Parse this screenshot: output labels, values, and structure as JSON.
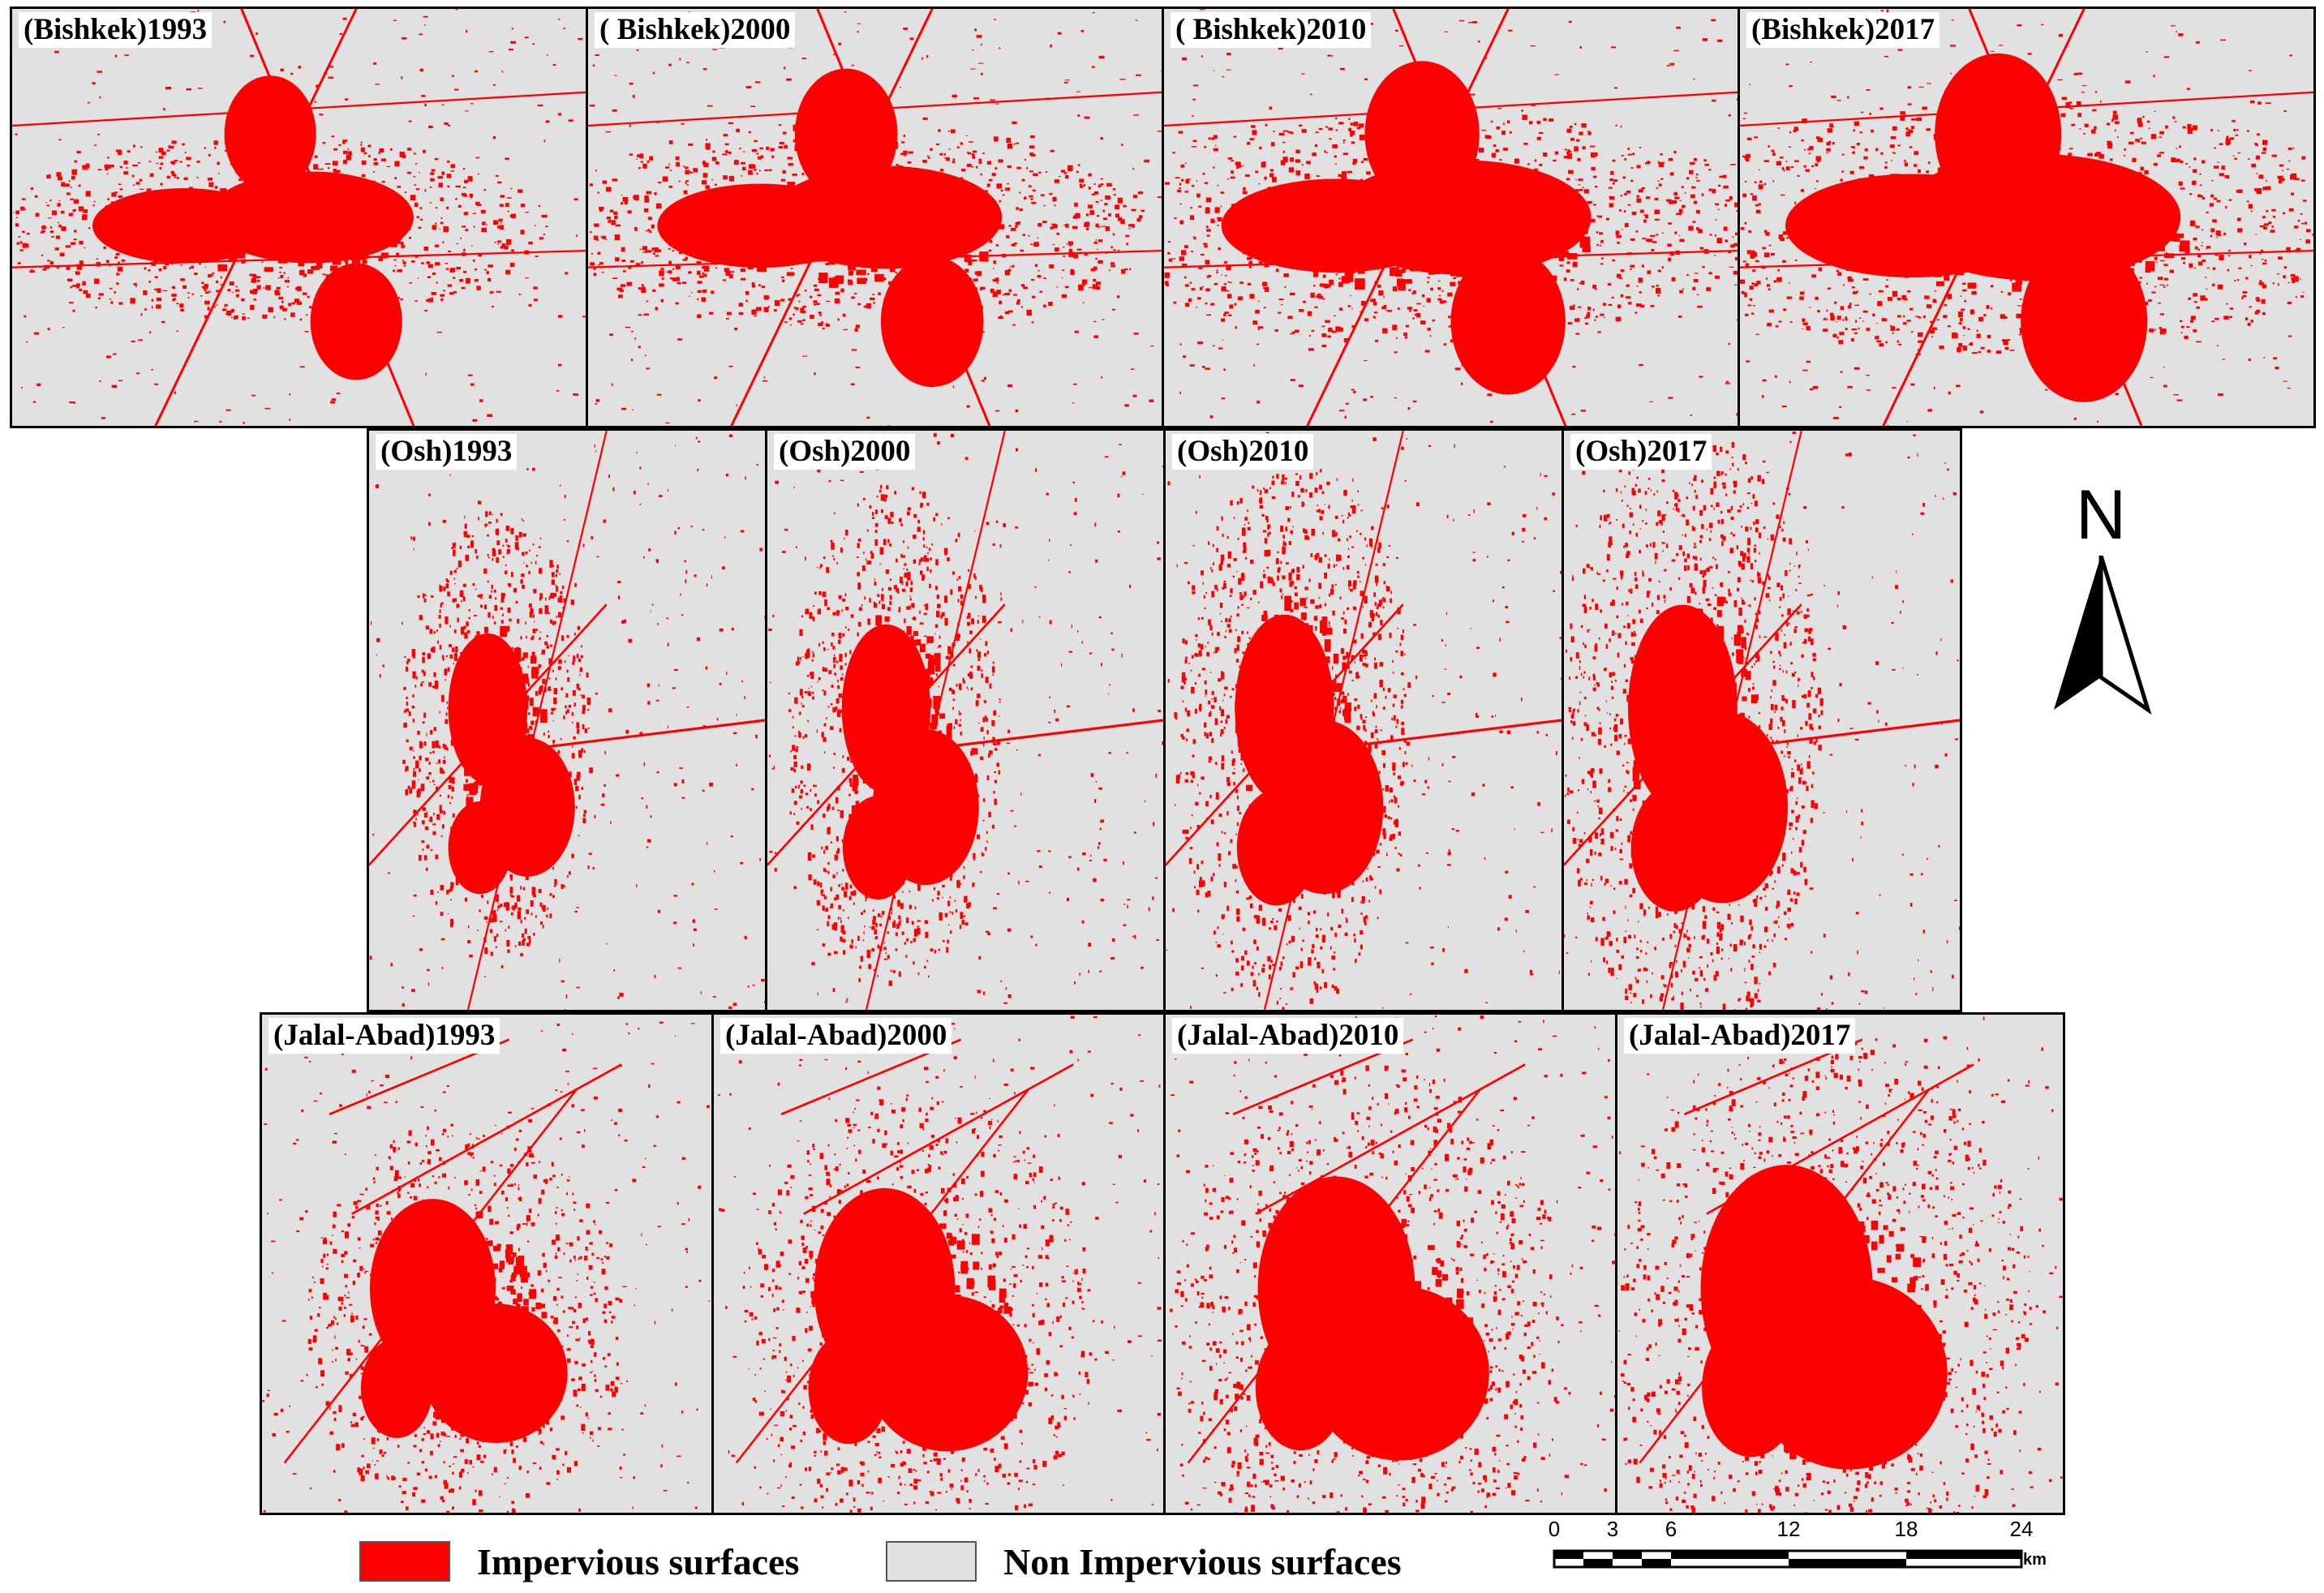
{
  "panels": [
    {
      "label": "(Bishkek)1993",
      "city": "Bishkek",
      "year": 1993
    },
    {
      "label": "( Bishkek)2000",
      "city": "Bishkek",
      "year": 2000
    },
    {
      "label": "( Bishkek)2010",
      "city": "Bishkek",
      "year": 2010
    },
    {
      "label": "(Bishkek)2017",
      "city": "Bishkek",
      "year": 2017
    },
    {
      "label": "(Osh)1993",
      "city": "Osh",
      "year": 1993
    },
    {
      "label": "(Osh)2000",
      "city": "Osh",
      "year": 2000
    },
    {
      "label": "(Osh)2010",
      "city": "Osh",
      "year": 2010
    },
    {
      "label": "(Osh)2017",
      "city": "Osh",
      "year": 2017
    },
    {
      "label": "(Jalal-Abad)1993",
      "city": "Jalal-Abad",
      "year": 1993
    },
    {
      "label": "(Jalal-Abad)2000",
      "city": "Jalal-Abad",
      "year": 2000
    },
    {
      "label": "(Jalal-Abad)2010",
      "city": "Jalal-Abad",
      "year": 2010
    },
    {
      "label": "(Jalal-Abad)2017",
      "city": "Jalal-Abad",
      "year": 2017
    }
  ],
  "north_arrow": {
    "letter": "N"
  },
  "legend": {
    "impervious": {
      "label": "Impervious surfaces",
      "color": "#ff0000"
    },
    "non_impervious": {
      "label": "Non Impervious surfaces",
      "color": "#e1e1e1"
    }
  },
  "scale_bar": {
    "ticks": [
      "0",
      "3",
      "6",
      "12",
      "18",
      "24"
    ],
    "unit": "km"
  },
  "colors": {
    "impervious": "#ff0000",
    "background": "#e1e1e1",
    "frame": "#000000"
  }
}
